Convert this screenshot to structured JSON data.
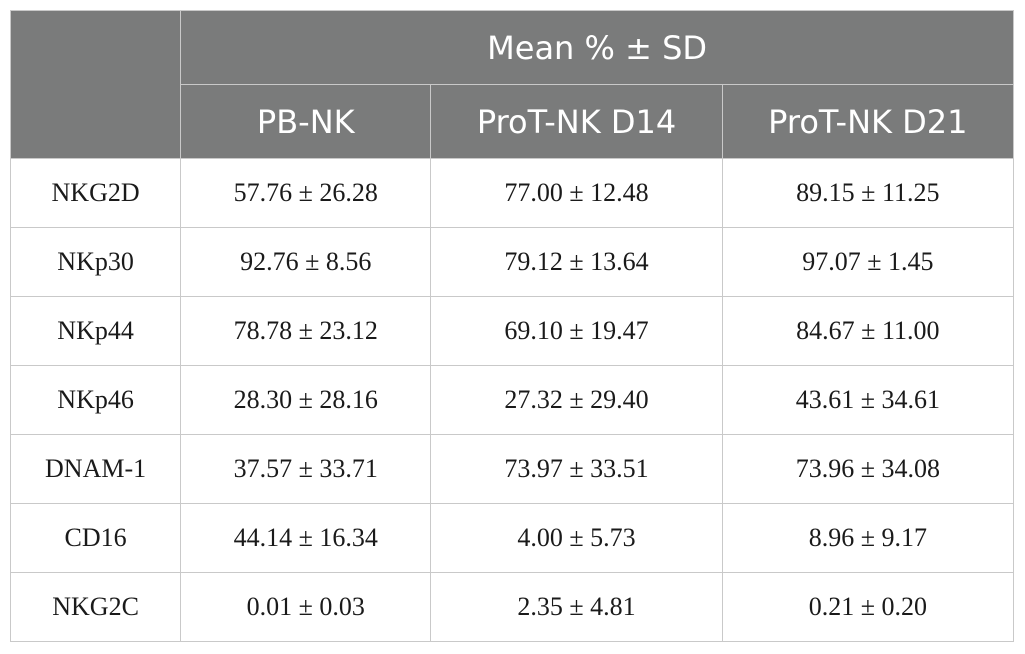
{
  "table": {
    "group_header": "Mean % ± SD",
    "columns": [
      "PB-NK",
      "ProT-NK D14",
      "ProT-NK D21"
    ],
    "rows": [
      {
        "label": "NKG2D",
        "values": [
          "57.76 ± 26.28",
          "77.00 ± 12.48",
          "89.15 ± 11.25"
        ]
      },
      {
        "label": "NKp30",
        "values": [
          "92.76 ± 8.56",
          "79.12 ± 13.64",
          "97.07 ± 1.45"
        ]
      },
      {
        "label": "NKp44",
        "values": [
          "78.78 ± 23.12",
          "69.10 ± 19.47",
          "84.67 ± 11.00"
        ]
      },
      {
        "label": "NKp46",
        "values": [
          "28.30 ± 28.16",
          "27.32 ± 29.40",
          "43.61 ± 34.61"
        ]
      },
      {
        "label": "DNAM-1",
        "values": [
          "37.57 ± 33.71",
          "73.97 ± 33.51",
          "73.96 ± 34.08"
        ]
      },
      {
        "label": "CD16",
        "values": [
          "44.14 ± 16.34",
          "4.00 ± 5.73",
          "8.96 ± 9.17"
        ]
      },
      {
        "label": "NKG2C",
        "values": [
          "0.01 ± 0.03",
          "2.35 ± 4.81",
          "0.21 ± 0.20"
        ]
      }
    ]
  }
}
